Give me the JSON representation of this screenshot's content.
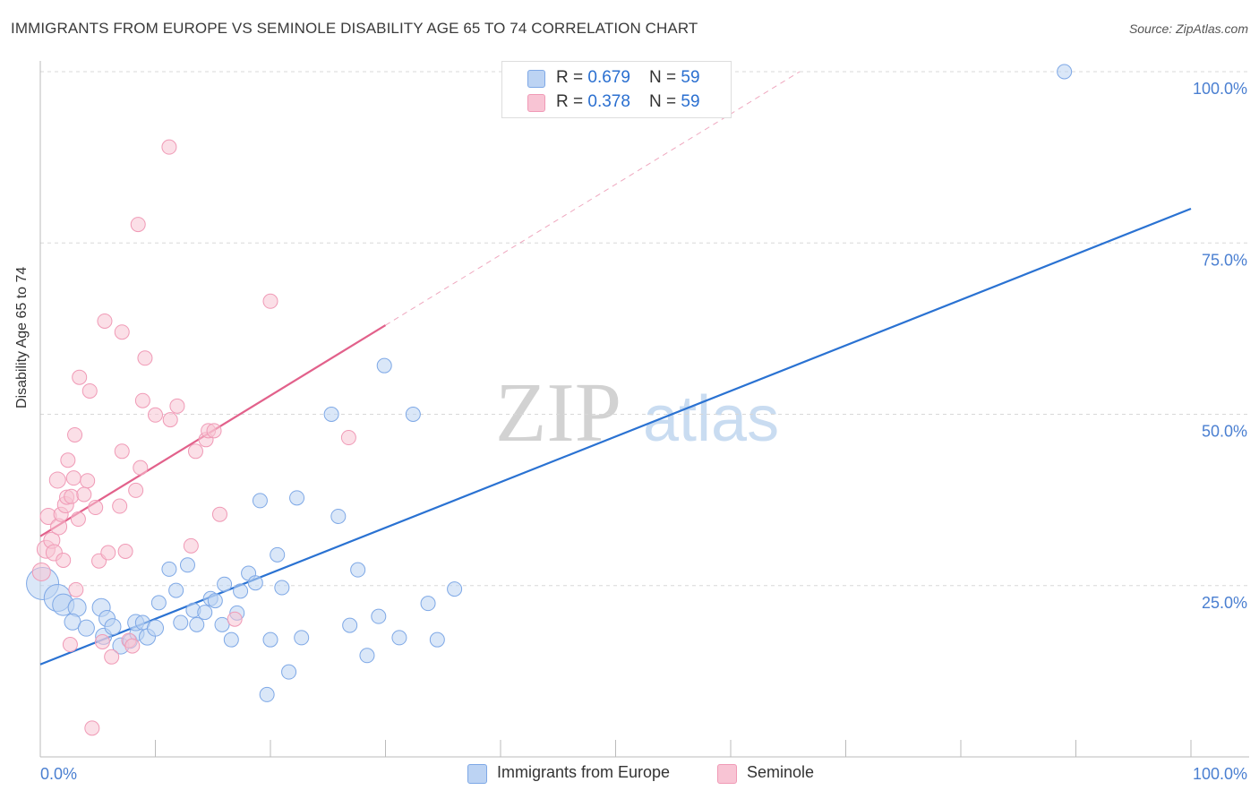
{
  "title": "IMMIGRANTS FROM EUROPE VS SEMINOLE DISABILITY AGE 65 TO 74 CORRELATION CHART",
  "source": "Source: ZipAtlas.com",
  "watermark": {
    "zip": "ZIP",
    "atlas": "atlas"
  },
  "legend": {
    "rows": [
      {
        "r_label": "R = ",
        "r_value": "0.679",
        "n_label": "N = ",
        "n_value": "59"
      },
      {
        "r_label": "R = ",
        "r_value": "0.378",
        "n_label": "N = ",
        "n_value": "59"
      }
    ]
  },
  "chart_data": {
    "type": "scatter",
    "xlabel": "",
    "ylabel": "Disability Age 65 to 74",
    "xlim": [
      0,
      100
    ],
    "ylim": [
      0,
      100
    ],
    "x_tick_labels": [
      "0.0%",
      "100.0%"
    ],
    "y_ticks": [
      25,
      50,
      75,
      100
    ],
    "y_tick_labels": [
      "25.0%",
      "50.0%",
      "75.0%",
      "100.0%"
    ],
    "grid": true,
    "series": [
      {
        "name": "Immigrants from Europe",
        "color": "#7ea8e6",
        "fill": "#bcd3f3",
        "line_color": "#2a72d2",
        "r": 0.679,
        "n": 59,
        "trend": {
          "x": [
            0,
            100
          ],
          "y": [
            13.5,
            80.0
          ]
        },
        "points": [
          [
            0.2,
            25.3,
            18
          ],
          [
            1.5,
            23.2,
            15
          ],
          [
            2.0,
            22.2,
            12
          ],
          [
            3.2,
            21.8,
            10
          ],
          [
            2.8,
            19.7,
            9
          ],
          [
            4.0,
            18.8,
            9
          ],
          [
            5.5,
            17.6,
            9
          ],
          [
            5.3,
            21.8,
            10
          ],
          [
            5.8,
            20.2,
            9
          ],
          [
            6.3,
            19.0,
            9
          ],
          [
            7.0,
            16.2,
            9
          ],
          [
            7.8,
            16.9,
            8
          ],
          [
            8.4,
            18.0,
            8
          ],
          [
            8.3,
            19.6,
            9
          ],
          [
            8.9,
            19.6,
            8
          ],
          [
            9.3,
            17.5,
            9
          ],
          [
            10.0,
            18.8,
            9
          ],
          [
            10.3,
            22.5,
            8
          ],
          [
            11.2,
            27.4,
            8
          ],
          [
            11.8,
            24.3,
            8
          ],
          [
            12.2,
            19.6,
            8
          ],
          [
            12.8,
            28.0,
            8
          ],
          [
            13.3,
            21.4,
            8
          ],
          [
            13.6,
            19.3,
            8
          ],
          [
            14.3,
            21.1,
            8
          ],
          [
            14.8,
            23.1,
            8
          ],
          [
            15.2,
            22.8,
            8
          ],
          [
            15.8,
            19.3,
            8
          ],
          [
            16.0,
            25.2,
            8
          ],
          [
            16.6,
            17.1,
            8
          ],
          [
            17.1,
            21.0,
            8
          ],
          [
            17.4,
            24.2,
            8
          ],
          [
            18.1,
            26.8,
            8
          ],
          [
            18.7,
            25.4,
            8
          ],
          [
            19.1,
            37.4,
            8
          ],
          [
            19.7,
            9.1,
            8
          ],
          [
            20.0,
            17.1,
            8
          ],
          [
            20.6,
            29.5,
            8
          ],
          [
            21.0,
            24.7,
            8
          ],
          [
            21.6,
            12.4,
            8
          ],
          [
            22.3,
            37.8,
            8
          ],
          [
            22.7,
            17.4,
            8
          ],
          [
            25.3,
            50.0,
            8
          ],
          [
            25.9,
            35.1,
            8
          ],
          [
            26.9,
            19.2,
            8
          ],
          [
            27.6,
            27.3,
            8
          ],
          [
            28.4,
            14.8,
            8
          ],
          [
            29.4,
            20.5,
            8
          ],
          [
            29.9,
            57.1,
            8
          ],
          [
            31.2,
            17.4,
            8
          ],
          [
            32.4,
            50.0,
            8
          ],
          [
            33.7,
            22.4,
            8
          ],
          [
            34.5,
            17.1,
            8
          ],
          [
            36.0,
            24.5,
            8
          ],
          [
            89.0,
            100.0,
            8
          ]
        ]
      },
      {
        "name": "Seminole",
        "color": "#f09ab6",
        "fill": "#f8c4d4",
        "line_color": "#e2618b",
        "r": 0.378,
        "n": 59,
        "trend": {
          "x": [
            0,
            30
          ],
          "y": [
            32.2,
            63.0
          ]
        },
        "trend_extension": {
          "x": [
            30,
            66
          ],
          "y": [
            63.0,
            100.0
          ]
        },
        "points": [
          [
            0.1,
            27.0,
            10
          ],
          [
            0.5,
            30.3,
            10
          ],
          [
            0.7,
            35.1,
            9
          ],
          [
            1.0,
            31.6,
            9
          ],
          [
            1.2,
            29.8,
            9
          ],
          [
            1.6,
            33.6,
            9
          ],
          [
            1.5,
            40.4,
            9
          ],
          [
            1.8,
            35.4,
            8
          ],
          [
            2.0,
            28.7,
            8
          ],
          [
            2.2,
            36.8,
            9
          ],
          [
            2.3,
            37.9,
            8
          ],
          [
            2.4,
            43.3,
            8
          ],
          [
            2.6,
            16.4,
            8
          ],
          [
            2.7,
            38.0,
            8
          ],
          [
            2.9,
            40.7,
            8
          ],
          [
            3.0,
            47.0,
            8
          ],
          [
            3.1,
            24.4,
            8
          ],
          [
            3.3,
            34.7,
            8
          ],
          [
            3.4,
            55.4,
            8
          ],
          [
            3.8,
            38.3,
            8
          ],
          [
            4.1,
            40.3,
            8
          ],
          [
            4.3,
            53.4,
            8
          ],
          [
            4.5,
            4.2,
            8
          ],
          [
            4.8,
            36.4,
            8
          ],
          [
            5.1,
            28.6,
            8
          ],
          [
            5.4,
            16.8,
            8
          ],
          [
            5.6,
            63.6,
            8
          ],
          [
            5.9,
            29.8,
            8
          ],
          [
            6.2,
            14.6,
            8
          ],
          [
            6.9,
            36.6,
            8
          ],
          [
            7.1,
            62.0,
            8
          ],
          [
            7.1,
            44.6,
            8
          ],
          [
            7.4,
            30.0,
            8
          ],
          [
            7.7,
            17.0,
            8
          ],
          [
            8.0,
            16.2,
            8
          ],
          [
            8.3,
            38.9,
            8
          ],
          [
            8.5,
            77.7,
            8
          ],
          [
            8.7,
            42.2,
            8
          ],
          [
            8.9,
            52.0,
            8
          ],
          [
            9.1,
            58.2,
            8
          ],
          [
            10.0,
            49.9,
            8
          ],
          [
            11.2,
            89.0,
            8
          ],
          [
            11.3,
            49.2,
            8
          ],
          [
            11.9,
            51.2,
            8
          ],
          [
            13.1,
            30.8,
            8
          ],
          [
            13.5,
            44.6,
            8
          ],
          [
            14.4,
            46.3,
            8
          ],
          [
            14.6,
            47.6,
            8
          ],
          [
            15.1,
            47.6,
            8
          ],
          [
            15.6,
            35.4,
            8
          ],
          [
            16.9,
            20.1,
            8
          ],
          [
            20.0,
            66.5,
            8
          ],
          [
            26.8,
            46.6,
            8
          ]
        ]
      }
    ]
  },
  "colors": {
    "grid": "#d8d8d8",
    "axis": "#bbbbbb",
    "tick_label": "#4a7fd1",
    "watermark": "#d0d0d0",
    "watermark_atlas": "#c5d8ef"
  }
}
